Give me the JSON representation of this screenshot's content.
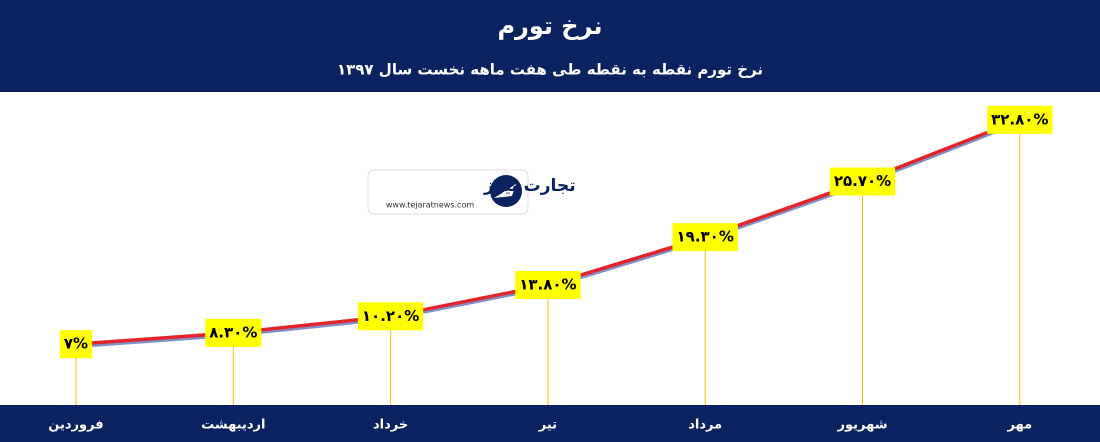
{
  "chart_data": {
    "type": "line",
    "title": "نرخ تورم",
    "subtitle": "نرخ تورم نقطه به نقطه طی هفت ماهه نخست سال ۱۳۹۷",
    "logo": {
      "name": "تجارت نیوز",
      "url": "www.tejaratnews.com"
    },
    "categories": [
      "فروردین",
      "اردیبهشت",
      "خرداد",
      "تیر",
      "مرداد",
      "شهریور",
      "مهر"
    ],
    "values": [
      7,
      8.3,
      10.2,
      13.8,
      19.3,
      25.7,
      32.8
    ],
    "value_labels": [
      "۷%",
      "۸.۳۰%",
      "۱۰.۲۰%",
      "۱۳.۸۰%",
      "۱۹.۳۰%",
      "۲۵.۷۰%",
      "۳۲.۸۰%"
    ],
    "color": "#e3242b",
    "label_color": "#ffff00",
    "ylim": [
      0,
      36
    ]
  }
}
